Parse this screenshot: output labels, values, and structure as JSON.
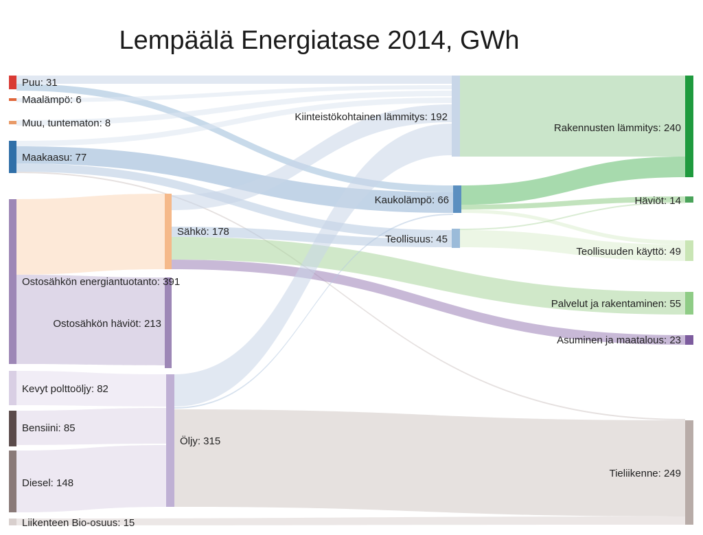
{
  "title": "Lempäälä Energiatase 2014, GWh",
  "colors": {
    "puu": "#d93a34",
    "maalampo": "#e0663a",
    "muu": "#e89a68",
    "maakaasu": "#2f6fa8",
    "ostosahko": "#9d87b6",
    "kevyt": "#d9cfe4",
    "bensiini": "#5a4a4a",
    "diesel": "#8a7a78",
    "bio": "#d8cfcd",
    "sahko": "#f5b98a",
    "haviot_osto": "#9d87b6",
    "oljy": "#bfb0d4",
    "kiinteisto": "#c8d6e8",
    "kaukolampo": "#5b8fc0",
    "teollisuus": "#9bbbd9",
    "rakennukset": "#1f9a3e",
    "haviot": "#4aa35a",
    "teollisuuden": "#c9e5b5",
    "palvelut": "#8fcc86",
    "asuminen": "#7d5c9e",
    "tieliikenne": "#b8aca8"
  },
  "nodes": [
    {
      "id": "puu",
      "label": "Puu: 31"
    },
    {
      "id": "maalampo",
      "label": "Maalämpö: 6"
    },
    {
      "id": "muu",
      "label": "Muu, tuntematon: 8"
    },
    {
      "id": "maakaasu",
      "label": "Maakaasu: 77"
    },
    {
      "id": "ostosahko",
      "label": "Ostosähkön energiantuotanto: 391"
    },
    {
      "id": "kevyt",
      "label": "Kevyt polttoöljy: 82"
    },
    {
      "id": "bensiini",
      "label": "Bensiini: 85"
    },
    {
      "id": "diesel",
      "label": "Diesel: 148"
    },
    {
      "id": "bio",
      "label": "Liikenteen Bio-osuus: 15"
    },
    {
      "id": "sahko",
      "label": "Sähkö: 178"
    },
    {
      "id": "haviot_osto",
      "label": "Ostosähkön häviöt: 213"
    },
    {
      "id": "oljy",
      "label": "Öljy: 315"
    },
    {
      "id": "kiinteisto",
      "label": "Kiinteistökohtainen lämmitys: 192"
    },
    {
      "id": "kaukolampo",
      "label": "Kaukolämpö: 66"
    },
    {
      "id": "teollisuus",
      "label": "Teollisuus: 45"
    },
    {
      "id": "rakennukset",
      "label": "Rakennusten lämmitys: 240"
    },
    {
      "id": "haviot",
      "label": "Häviöt: 14"
    },
    {
      "id": "teollisuuden",
      "label": "Teollisuuden käyttö: 49"
    },
    {
      "id": "palvelut",
      "label": "Palvelut ja rakentaminen: 55"
    },
    {
      "id": "asuminen",
      "label": "Asuminen ja maatalous: 23"
    },
    {
      "id": "tieliikenne",
      "label": "Tieliikenne: 249"
    }
  ]
}
